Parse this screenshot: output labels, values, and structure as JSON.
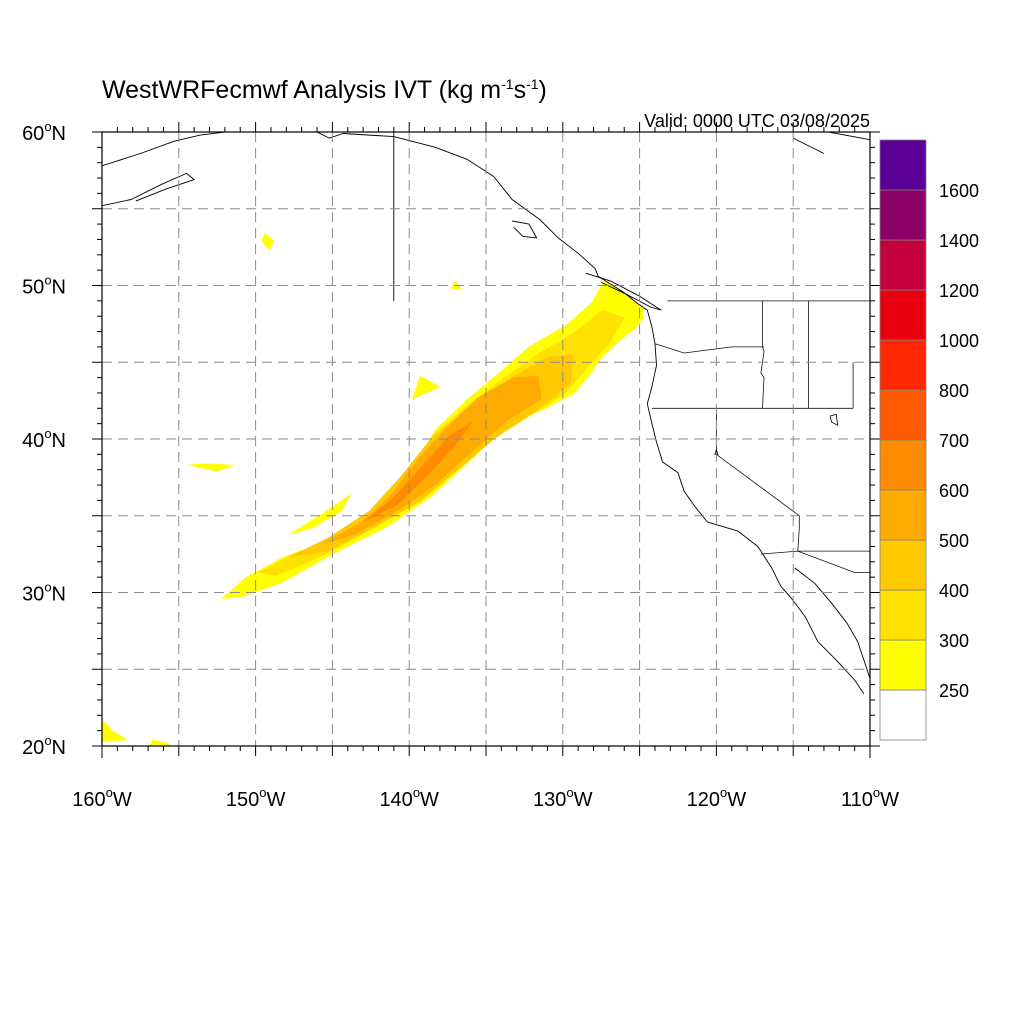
{
  "title": {
    "main": "WestWRFecmwf Analysis IVT (kg m",
    "sup1": "-1",
    "mid": "s",
    "sup2": "-1",
    "end": ")"
  },
  "valid": "Valid: 0000 UTC 03/08/2025",
  "map_extent": {
    "lon_min": -160,
    "lon_max": -110,
    "lat_min": 20,
    "lat_max": 60
  },
  "lat_labels": [
    {
      "value": 60,
      "text": "60",
      "suffix": "N"
    },
    {
      "value": 50,
      "text": "50",
      "suffix": "N"
    },
    {
      "value": 40,
      "text": "40",
      "suffix": "N"
    },
    {
      "value": 30,
      "text": "30",
      "suffix": "N"
    },
    {
      "value": 20,
      "text": "20",
      "suffix": "N"
    }
  ],
  "lon_labels": [
    {
      "value": -160,
      "text": "160",
      "suffix": "W"
    },
    {
      "value": -150,
      "text": "150",
      "suffix": "W"
    },
    {
      "value": -140,
      "text": "140",
      "suffix": "W"
    },
    {
      "value": -130,
      "text": "130",
      "suffix": "W"
    },
    {
      "value": -120,
      "text": "120",
      "suffix": "W"
    },
    {
      "value": -110,
      "text": "110",
      "suffix": "W"
    }
  ],
  "grid": {
    "lon_step": 5,
    "lat_step": 5,
    "style": "dashed"
  },
  "colorbar": {
    "levels": [
      250,
      300,
      400,
      500,
      600,
      700,
      800,
      1000,
      1200,
      1400,
      1600
    ],
    "labels": [
      "250",
      "300",
      "400",
      "500",
      "600",
      "700",
      "800",
      "1000",
      "1200",
      "1400",
      "1600"
    ],
    "colors": [
      "#ffffff",
      "#ffff00",
      "#ffe100",
      "#ffc800",
      "#ffaa00",
      "#ff8c00",
      "#ff5a00",
      "#ff2800",
      "#e8000f",
      "#c4003e",
      "#8a0066",
      "#5a0096"
    ]
  },
  "ivt_plume": {
    "bands": [
      {
        "level_index": 1,
        "color": "#ffff00",
        "outline": [
          [
            -152.2,
            29.6
          ],
          [
            -150.6,
            31
          ],
          [
            -148.2,
            32.3
          ],
          [
            -145.5,
            33.3
          ],
          [
            -143,
            34.8
          ],
          [
            -140.2,
            37.3
          ],
          [
            -138.3,
            40.6
          ],
          [
            -136.2,
            42.6
          ],
          [
            -134.4,
            44.1
          ],
          [
            -132.2,
            46
          ],
          [
            -129.8,
            47.4
          ],
          [
            -128.1,
            48.9
          ],
          [
            -127.3,
            50.3
          ],
          [
            -126.3,
            49.7
          ],
          [
            -124.8,
            48.5
          ],
          [
            -124.8,
            47.8
          ],
          [
            -125.4,
            47.1
          ],
          [
            -126.3,
            46.4
          ],
          [
            -127.4,
            45.4
          ],
          [
            -128.1,
            44.4
          ],
          [
            -129.2,
            43
          ],
          [
            -131.1,
            42
          ],
          [
            -133.8,
            40.8
          ],
          [
            -135.7,
            38.9
          ],
          [
            -138.5,
            36.3
          ],
          [
            -141.4,
            34.3
          ],
          [
            -144.8,
            32.6
          ],
          [
            -148.4,
            30.6
          ],
          [
            -151,
            29.7
          ]
        ]
      },
      {
        "level_index": 2,
        "color": "#ffe100",
        "outline": [
          [
            -149.8,
            31.3
          ],
          [
            -147.5,
            32.5
          ],
          [
            -144.8,
            33.6
          ],
          [
            -142.6,
            35.1
          ],
          [
            -140.3,
            37.6
          ],
          [
            -138.4,
            40.3
          ],
          [
            -136.2,
            42.2
          ],
          [
            -133.8,
            44
          ],
          [
            -131.5,
            45.6
          ],
          [
            -129.3,
            46.9
          ],
          [
            -127.4,
            48.4
          ],
          [
            -126,
            47.9
          ],
          [
            -127,
            46.2
          ],
          [
            -128.3,
            44.8
          ],
          [
            -129.8,
            43
          ],
          [
            -132,
            41.6
          ],
          [
            -134.5,
            40
          ],
          [
            -136.8,
            38
          ],
          [
            -139.5,
            35.9
          ],
          [
            -142.5,
            34.1
          ],
          [
            -145.8,
            32.3
          ],
          [
            -148.7,
            31.1
          ]
        ]
      },
      {
        "level_index": 3,
        "color": "#ffc800",
        "outline": [
          [
            -147.8,
            32.3
          ],
          [
            -145.2,
            33.6
          ],
          [
            -142.6,
            35.3
          ],
          [
            -140.5,
            37.6
          ],
          [
            -138.6,
            40
          ],
          [
            -136.2,
            42
          ],
          [
            -133.5,
            43.9
          ],
          [
            -131,
            45.3
          ],
          [
            -129.3,
            45.5
          ],
          [
            -129.5,
            43.6
          ],
          [
            -131.5,
            42
          ],
          [
            -134,
            40.4
          ],
          [
            -136.5,
            38.3
          ],
          [
            -139.2,
            36
          ],
          [
            -142.2,
            34.3
          ],
          [
            -145.3,
            32.7
          ]
        ]
      },
      {
        "level_index": 4,
        "color": "#ffaa00",
        "outline": [
          [
            -145.6,
            33.2
          ],
          [
            -143.2,
            34.5
          ],
          [
            -141.3,
            36.2
          ],
          [
            -139.5,
            38.6
          ],
          [
            -137.5,
            40.8
          ],
          [
            -135.5,
            42.7
          ],
          [
            -133.2,
            44
          ],
          [
            -131.6,
            44.1
          ],
          [
            -131.4,
            42.6
          ],
          [
            -133.5,
            41.3
          ],
          [
            -135.8,
            39.3
          ],
          [
            -138.2,
            37.1
          ],
          [
            -140.8,
            35.3
          ],
          [
            -143.5,
            33.8
          ]
        ]
      },
      {
        "level_index": 5,
        "color": "#ff8c00",
        "outline": [
          [
            -143,
            34.6
          ],
          [
            -141.2,
            36
          ],
          [
            -139.3,
            38.1
          ],
          [
            -137.4,
            40.2
          ],
          [
            -135.9,
            41.1
          ],
          [
            -137,
            39.6
          ],
          [
            -138.8,
            37.6
          ],
          [
            -140.8,
            35.7
          ]
        ]
      }
    ],
    "patches": [
      {
        "level_index": 1,
        "color": "#ffff00",
        "outline": [
          [
            -143.8,
            36.4
          ],
          [
            -145.7,
            35.1
          ],
          [
            -147.8,
            33.8
          ],
          [
            -146.3,
            34.2
          ],
          [
            -144.4,
            35.3
          ]
        ]
      },
      {
        "level_index": 1,
        "color": "#ffff00",
        "outline": [
          [
            -138,
            43.4
          ],
          [
            -139.8,
            42.6
          ],
          [
            -139.3,
            44.1
          ]
        ]
      },
      {
        "level_index": 1,
        "color": "#ffff00",
        "outline": [
          [
            -153.3,
            38.4
          ],
          [
            -151.4,
            38.3
          ],
          [
            -152.5,
            37.9
          ],
          [
            -154.4,
            38.3
          ]
        ]
      },
      {
        "level_index": 1,
        "color": "#ffff00",
        "outline": [
          [
            -149.4,
            53.4
          ],
          [
            -148.8,
            52.9
          ],
          [
            -149.1,
            52.3
          ],
          [
            -149.6,
            52.9
          ]
        ]
      },
      {
        "level_index": 1,
        "color": "#ffff00",
        "outline": [
          [
            -137,
            50.3
          ],
          [
            -136.6,
            49.8
          ],
          [
            -137.3,
            49.8
          ]
        ]
      },
      {
        "level_index": 1,
        "color": "#ffff00",
        "outline": [
          [
            -160,
            20.3
          ],
          [
            -160,
            21.7
          ],
          [
            -159.2,
            20.9
          ],
          [
            -158.3,
            20.4
          ]
        ]
      },
      {
        "level_index": 1,
        "color": "#ffff00",
        "outline": [
          [
            -156.9,
            20
          ],
          [
            -156.7,
            20.4
          ],
          [
            -155.8,
            20.2
          ],
          [
            -155.5,
            20
          ]
        ]
      }
    ]
  },
  "coastlines": [
    [
      [
        -160,
        57.8
      ],
      [
        -157.5,
        58.6
      ],
      [
        -155.3,
        59.4
      ],
      [
        -153.6,
        59.8
      ],
      [
        -152,
        60
      ]
    ],
    [
      [
        -160,
        55.2
      ],
      [
        -158.1,
        55.6
      ],
      [
        -156.1,
        56.6
      ],
      [
        -154.5,
        57.3
      ],
      [
        -154,
        56.9
      ],
      [
        -155.8,
        56.3
      ],
      [
        -157.8,
        55.5
      ]
    ],
    [
      [
        -146,
        60
      ],
      [
        -145.2,
        59.6
      ],
      [
        -144.3,
        59.9
      ],
      [
        -141,
        59.7
      ],
      [
        -138.3,
        59
      ],
      [
        -136.2,
        58.2
      ],
      [
        -134.5,
        57.1
      ],
      [
        -133.3,
        55.6
      ],
      [
        -131.5,
        54.3
      ],
      [
        -130.3,
        53.1
      ],
      [
        -129,
        52.1
      ],
      [
        -127.9,
        51.1
      ],
      [
        -127.7,
        50.6
      ],
      [
        -126.1,
        49.6
      ],
      [
        -125.1,
        48.8
      ],
      [
        -124.5,
        48.4
      ],
      [
        -124.2,
        47.3
      ],
      [
        -124,
        46.2
      ],
      [
        -123.9,
        44.8
      ],
      [
        -124.2,
        43.4
      ],
      [
        -124.5,
        42.3
      ],
      [
        -124.2,
        41
      ],
      [
        -123.9,
        39.8
      ],
      [
        -123.5,
        38.5
      ],
      [
        -122.5,
        37.8
      ],
      [
        -122.1,
        36.6
      ],
      [
        -121.4,
        35.6
      ],
      [
        -120.6,
        34.6
      ],
      [
        -118.6,
        34
      ],
      [
        -117.3,
        33
      ],
      [
        -116.4,
        31.6
      ],
      [
        -115.8,
        30.4
      ],
      [
        -115.1,
        29.6
      ],
      [
        -114.2,
        28.4
      ],
      [
        -113.4,
        26.8
      ],
      [
        -112.1,
        25.5
      ],
      [
        -111,
        24.3
      ],
      [
        -110.4,
        23.4
      ]
    ],
    [
      [
        -114.9,
        31.6
      ],
      [
        -113.6,
        30.6
      ],
      [
        -112.5,
        29.3
      ],
      [
        -111.5,
        28
      ],
      [
        -110.8,
        26.8
      ],
      [
        -110.3,
        25.3
      ],
      [
        -110,
        24.4
      ]
    ],
    [
      [
        -133.3,
        54.2
      ],
      [
        -132.2,
        54
      ],
      [
        -131.7,
        53.1
      ],
      [
        -132.6,
        53.2
      ],
      [
        -133.2,
        53.8
      ]
    ],
    [
      [
        -128.5,
        50.8
      ],
      [
        -126.9,
        50.3
      ],
      [
        -125,
        49.3
      ],
      [
        -123.6,
        48.4
      ],
      [
        -124.3,
        48.6
      ],
      [
        -125.8,
        49.4
      ],
      [
        -127.5,
        50.2
      ]
    ],
    [
      [
        -141,
        60
      ],
      [
        -141,
        50
      ],
      [
        -141,
        49
      ]
    ],
    [
      [
        -115,
        59.6
      ],
      [
        -113,
        58.6
      ]
    ],
    [
      [
        -112.7,
        60
      ],
      [
        -110,
        59.5
      ]
    ]
  ],
  "borders": [
    [
      [
        -123.2,
        49
      ],
      [
        -110,
        49
      ]
    ],
    [
      [
        -124.2,
        42
      ],
      [
        -111.1,
        42
      ]
    ],
    [
      [
        -120,
        42
      ],
      [
        -120,
        39
      ],
      [
        -114.6,
        35
      ]
    ],
    [
      [
        -117,
        49
      ],
      [
        -117,
        46
      ],
      [
        -116.9,
        45.7
      ],
      [
        -117.1,
        44.3
      ],
      [
        -116.9,
        44
      ],
      [
        -117,
        42
      ]
    ],
    [
      [
        -124,
        46.2
      ],
      [
        -122.1,
        45.6
      ],
      [
        -119,
        46
      ],
      [
        -116.9,
        46
      ]
    ],
    [
      [
        -114,
        49
      ],
      [
        -114,
        42
      ]
    ],
    [
      [
        -114.6,
        35
      ],
      [
        -114.6,
        34.2
      ],
      [
        -114.7,
        32.7
      ],
      [
        -110,
        32.7
      ]
    ],
    [
      [
        -117.1,
        32.5
      ],
      [
        -114.7,
        32.7
      ],
      [
        -111,
        31.3
      ],
      [
        -110,
        31.3
      ]
    ],
    [
      [
        -111.1,
        42
      ],
      [
        -111.1,
        44
      ],
      [
        -111.1,
        45
      ]
    ]
  ],
  "lakes": [
    [
      [
        -112.6,
        41.5
      ],
      [
        -112.2,
        41.6
      ],
      [
        -112.1,
        40.9
      ],
      [
        -112.5,
        41.1
      ]
    ],
    [
      [
        -120,
        39.3
      ],
      [
        -119.9,
        39
      ],
      [
        -120.1,
        39
      ]
    ]
  ]
}
